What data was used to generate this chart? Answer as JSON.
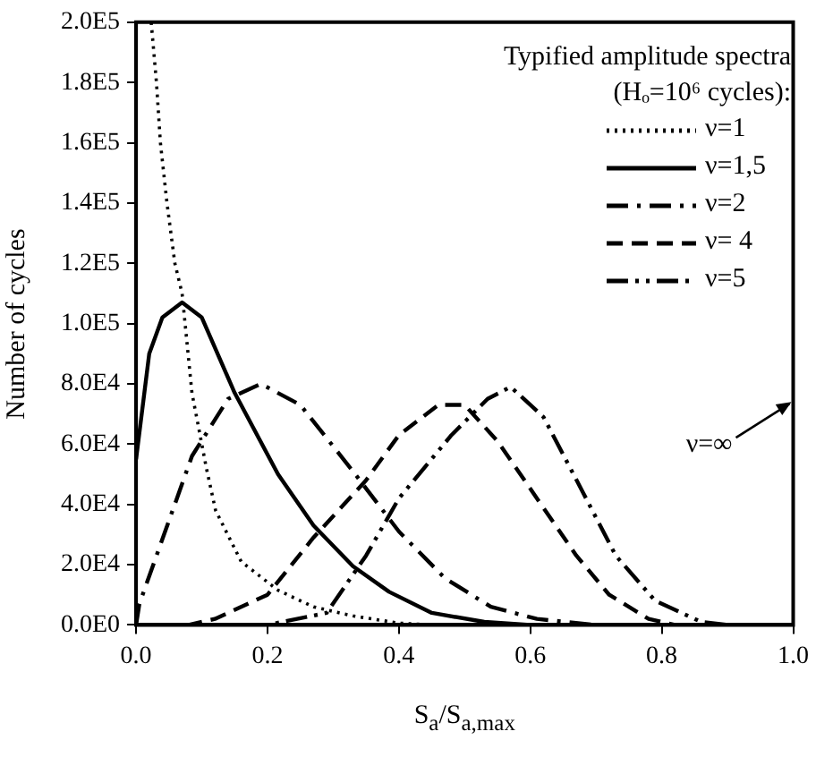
{
  "chart_data": {
    "type": "line",
    "xlabel": "S$_{a}$/S$_{a,max}$",
    "ylabel": "Number of cycles",
    "legend_title": "Typified  amplitude spectra (Hₒ=10⁶ cycles):",
    "legend": "top right",
    "grid": false,
    "xlim": [
      0,
      1
    ],
    "xticks": [
      {
        "value": 0,
        "label": "0.0"
      },
      {
        "value": 0.2,
        "label": "0.2"
      },
      {
        "value": 0.4,
        "label": "0.4"
      },
      {
        "value": 0.6,
        "label": "0.6"
      },
      {
        "value": 0.8,
        "label": "0.8"
      },
      {
        "value": 1,
        "label": "1.0"
      }
    ],
    "ylim": [
      0,
      200000
    ],
    "yticks": [
      {
        "value": 0,
        "label": "0.0E0"
      },
      {
        "value": 20000,
        "label": "2.0E4"
      },
      {
        "value": 40000,
        "label": "4.0E4"
      },
      {
        "value": 60000,
        "label": "6.0E4"
      },
      {
        "value": 80000,
        "label": "8.0E4"
      },
      {
        "value": 100000,
        "label": "1.0E5"
      },
      {
        "value": 120000,
        "label": "1.2E5"
      },
      {
        "value": 140000,
        "label": "1.4E5"
      },
      {
        "value": 160000,
        "label": "1.6E5"
      },
      {
        "value": 180000,
        "label": "1.8E5"
      },
      {
        "value": 200000,
        "label": "2.0E5"
      }
    ],
    "series": [
      {
        "name": "ν=1",
        "color": "#000000",
        "line_style": "dotted",
        "x": [
          0.023,
          0.031,
          0.037,
          0.047,
          0.059,
          0.07,
          0.085,
          0.107,
          0.121,
          0.16,
          0.216,
          0.27,
          0.33,
          0.4,
          0.45
        ],
        "values": [
          200000,
          180000,
          160000,
          140000,
          120000,
          110000,
          77000,
          52000,
          38000,
          21000,
          11500,
          6000,
          3000,
          600,
          0
        ]
      },
      {
        "name": "ν=1,5",
        "color": "#000000",
        "line_style": "solid",
        "x": [
          0,
          0.02,
          0.04,
          0.07,
          0.1,
          0.15,
          0.216,
          0.27,
          0.33,
          0.385,
          0.45,
          0.53,
          0.6,
          1
        ],
        "values": [
          55000,
          90000,
          102000,
          107000,
          102000,
          77000,
          50000,
          33000,
          19500,
          11000,
          4000,
          1000,
          0,
          0
        ]
      },
      {
        "name": "ν=2",
        "color": "#000000",
        "line_style": "dashdot",
        "x": [
          0,
          0.005,
          0.085,
          0.14,
          0.19,
          0.25,
          0.33,
          0.4,
          0.47,
          0.54,
          0.61,
          0.7,
          1
        ],
        "values": [
          0,
          7000,
          56000,
          75000,
          80000,
          73000,
          51000,
          31000,
          15500,
          6000,
          2000,
          0,
          0
        ]
      },
      {
        "name": "ν= 4",
        "color": "#000000",
        "line_style": "dashed",
        "x": [
          0,
          0.08,
          0.12,
          0.2,
          0.27,
          0.35,
          0.4,
          0.46,
          0.5,
          0.55,
          0.61,
          0.67,
          0.72,
          0.78,
          0.82,
          1
        ],
        "values": [
          0,
          0,
          2000,
          10000,
          29000,
          48000,
          63000,
          73000,
          73000,
          61000,
          42000,
          23000,
          10000,
          2000,
          0,
          0
        ]
      },
      {
        "name": "ν=5",
        "color": "#000000",
        "line_style": "dashdotdot",
        "x": [
          0,
          0.2,
          0.29,
          0.35,
          0.4,
          0.48,
          0.535,
          0.57,
          0.62,
          0.68,
          0.73,
          0.79,
          0.86,
          0.9,
          1
        ],
        "values": [
          0,
          0,
          4000,
          23000,
          42000,
          63000,
          75000,
          79000,
          69000,
          44000,
          23000,
          8000,
          1000,
          0,
          0
        ]
      }
    ],
    "annotations": [
      "ν=∞"
    ]
  }
}
